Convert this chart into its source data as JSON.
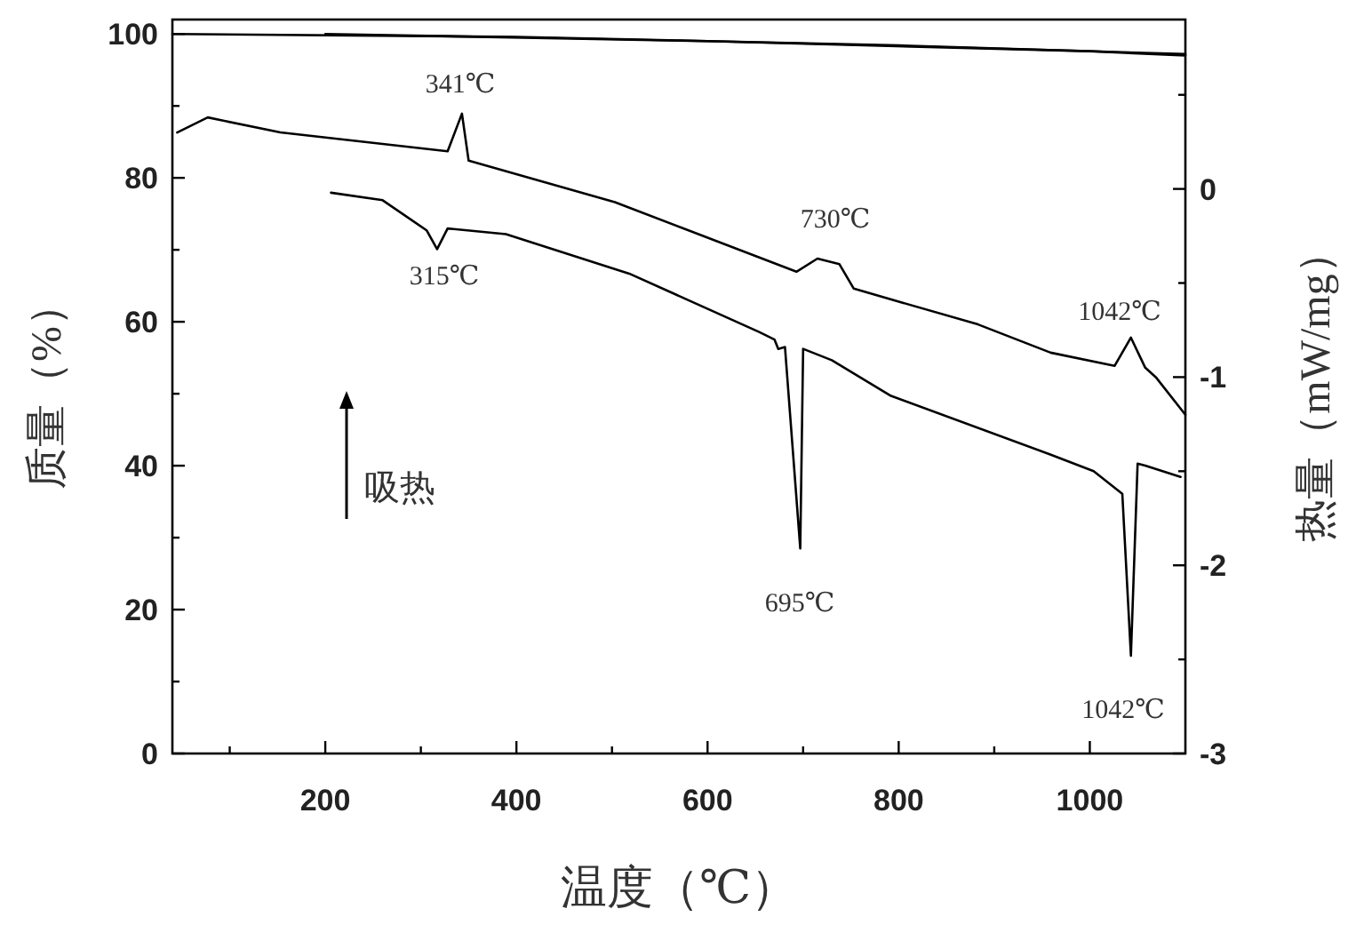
{
  "chart_data": {
    "type": "line",
    "xlabel": "温度（℃）",
    "ylabel": "质量（%）",
    "y2label": "热量（mW/mg）",
    "xlim": [
      40,
      1100
    ],
    "ylim": [
      0,
      102
    ],
    "y2lim": [
      -3,
      0.9
    ],
    "xticks": [
      {
        "value": 100,
        "label": null
      },
      200,
      {
        "value": 300,
        "label": null
      },
      400,
      {
        "value": 500,
        "label": null
      },
      600,
      {
        "value": 700,
        "label": null
      },
      800,
      {
        "value": 900,
        "label": null
      },
      1000
    ],
    "yticks": [
      0,
      {
        "value": 10,
        "label": null
      },
      20,
      {
        "value": 30,
        "label": null
      },
      40,
      {
        "value": 50,
        "label": null
      },
      60,
      {
        "value": 70,
        "label": null
      },
      80,
      {
        "value": 90,
        "label": null
      },
      100
    ],
    "y2ticks": [
      -3,
      {
        "value": -2.5,
        "label": null
      },
      -2,
      {
        "value": -1.5,
        "label": null
      },
      -1,
      {
        "value": -0.5,
        "label": null
      },
      0,
      {
        "value": 0.5,
        "label": null
      }
    ],
    "series": [
      {
        "color": "#000000",
        "x": [
          40,
          400,
          800,
          1100
        ],
        "values": [
          100,
          99.6,
          98.4,
          97.2
        ]
      },
      {
        "color": "#000000",
        "x": [
          200,
          600,
          1000,
          1100
        ],
        "values": [
          100,
          99,
          97.6,
          97
        ]
      },
      {
        "color": "#000000",
        "axis": "y2",
        "x": [
          45,
          77,
          153,
          328,
          343,
          350,
          503,
          693,
          715,
          738,
          753,
          883,
          959,
          1026,
          1043,
          1058,
          1069,
          1100
        ],
        "values": [
          0.3,
          0.38,
          0.3,
          0.2,
          0.4,
          0.15,
          -0.07,
          -0.44,
          -0.37,
          -0.4,
          -0.53,
          -0.72,
          -0.87,
          -0.94,
          -0.79,
          -0.95,
          -1.0,
          -1.2
        ]
      },
      {
        "color": "#000000",
        "axis": "y2",
        "x": [
          206,
          260,
          306,
          317,
          328,
          389,
          518,
          654,
          670,
          674,
          681,
          697,
          700,
          730,
          792,
          958,
          1004,
          1034,
          1043,
          1050,
          1058,
          1095
        ],
        "values": [
          -0.02,
          -0.06,
          -0.22,
          -0.32,
          -0.21,
          -0.24,
          -0.45,
          -0.76,
          -0.8,
          -0.85,
          -0.84,
          -1.91,
          -0.85,
          -0.91,
          -1.1,
          -1.41,
          -1.5,
          -1.62,
          -2.48,
          -1.46,
          -1.47,
          -1.53
        ]
      }
    ],
    "annotations": [
      "341℃",
      "315℃",
      "730℃",
      "1042℃",
      "695℃",
      "1042℃",
      "吸热"
    ]
  }
}
